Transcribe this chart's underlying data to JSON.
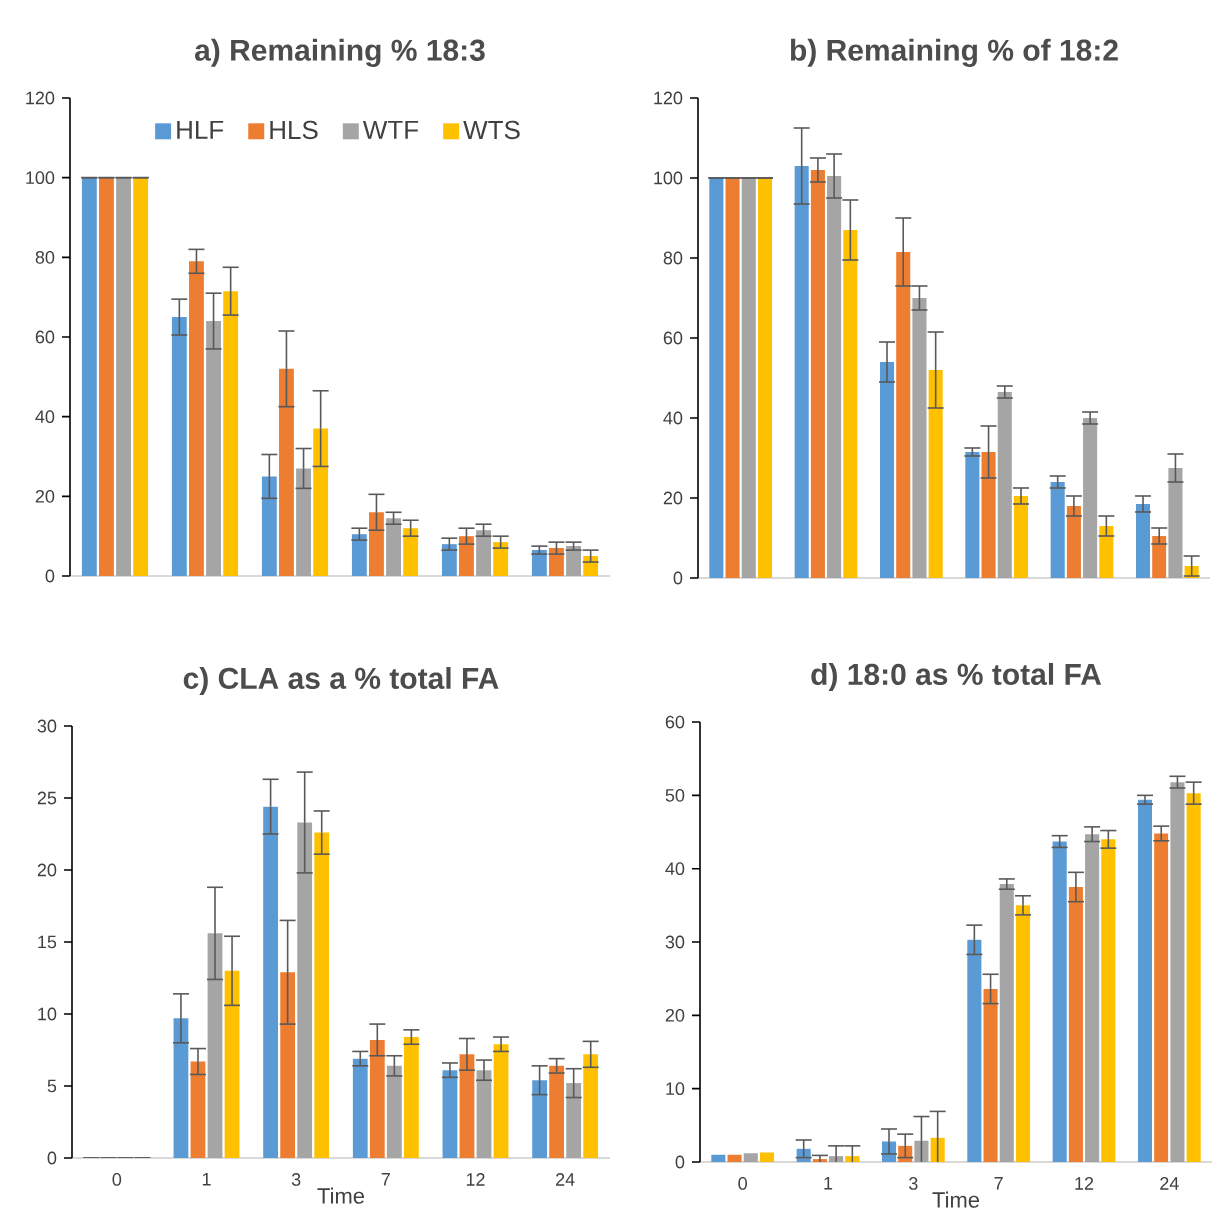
{
  "chart_data": [
    {
      "type": "bar",
      "title": "a) Remaining % 18:3",
      "categories": [
        null,
        null,
        null,
        null,
        null,
        null
      ],
      "tick_labels": "y",
      "legend": "top",
      "ylim": [
        0,
        120
      ],
      "yticks": [
        0,
        20,
        40,
        60,
        80,
        100,
        120
      ],
      "series": [
        {
          "name": "HLF",
          "color": "#5b9bd5",
          "values": [
            100,
            65,
            25,
            10.5,
            8,
            6.5
          ],
          "errors": [
            0,
            4.5,
            5.5,
            1.5,
            1.5,
            1
          ]
        },
        {
          "name": "HLS",
          "color": "#ed7d31",
          "values": [
            100,
            79,
            52,
            16,
            10,
            7
          ],
          "errors": [
            0,
            3,
            9.5,
            4.5,
            2,
            1.5
          ]
        },
        {
          "name": "WTF",
          "color": "#a5a5a5",
          "values": [
            100,
            64,
            27,
            14.5,
            11.5,
            7.5
          ],
          "errors": [
            0,
            7,
            5,
            1.5,
            1.5,
            1
          ]
        },
        {
          "name": "WTS",
          "color": "#ffc000",
          "values": [
            100,
            71.5,
            37,
            12,
            8.5,
            5
          ],
          "errors": [
            0,
            6,
            9.5,
            2,
            1.5,
            1.5
          ]
        }
      ]
    },
    {
      "type": "bar",
      "title": "b) Remaining % of 18:2",
      "categories": [
        null,
        null,
        null,
        null,
        null,
        null
      ],
      "tick_labels": "y",
      "ylim": [
        0,
        120
      ],
      "yticks": [
        0,
        20,
        40,
        60,
        80,
        100,
        120
      ],
      "series": [
        {
          "color": "#5b9bd5",
          "values": [
            100,
            103,
            54,
            31.5,
            24,
            18.5
          ],
          "errors": [
            0,
            9.5,
            5,
            1,
            1.5,
            2
          ]
        },
        {
          "color": "#ed7d31",
          "values": [
            100,
            102,
            81.5,
            31.5,
            18,
            10.5
          ],
          "errors": [
            0,
            3,
            8.5,
            6.5,
            2.5,
            2
          ]
        },
        {
          "color": "#a5a5a5",
          "values": [
            100,
            100.5,
            70,
            46.5,
            40,
            27.5
          ],
          "errors": [
            0,
            5.5,
            3,
            1.5,
            1.5,
            3.5
          ]
        },
        {
          "color": "#ffc000",
          "values": [
            100,
            87,
            52,
            20.5,
            13,
            3
          ],
          "errors": [
            0,
            7.5,
            9.5,
            2,
            2.5,
            2.5
          ]
        }
      ]
    },
    {
      "type": "bar",
      "title": "c) CLA as a % total FA",
      "xlabel": "Time",
      "categories": [
        "0",
        "1",
        "3",
        "7",
        "12",
        "24"
      ],
      "ylim": [
        0,
        30
      ],
      "yticks": [
        0,
        5,
        10,
        15,
        20,
        25,
        30
      ],
      "series": [
        {
          "color": "#5b9bd5",
          "values": [
            0,
            9.7,
            24.4,
            6.9,
            6.1,
            5.4
          ],
          "errors": [
            0,
            1.7,
            1.9,
            0.5,
            0.5,
            1
          ]
        },
        {
          "color": "#ed7d31",
          "values": [
            0,
            6.7,
            12.9,
            8.2,
            7.2,
            6.4
          ],
          "errors": [
            0,
            0.9,
            3.6,
            1.1,
            1.1,
            0.5
          ]
        },
        {
          "color": "#a5a5a5",
          "values": [
            0,
            15.6,
            23.3,
            6.4,
            6.1,
            5.2
          ],
          "errors": [
            0,
            3.2,
            3.5,
            0.7,
            0.7,
            1
          ]
        },
        {
          "color": "#ffc000",
          "values": [
            0,
            13,
            22.6,
            8.4,
            7.9,
            7.2
          ],
          "errors": [
            0,
            2.4,
            1.5,
            0.5,
            0.5,
            0.9
          ]
        }
      ]
    },
    {
      "type": "bar",
      "title": "d) 18:0 as % total FA",
      "xlabel": "Time",
      "categories": [
        "0",
        "1",
        "3",
        "7",
        "12",
        "24"
      ],
      "ylim": [
        0,
        60
      ],
      "yticks": [
        0,
        10,
        20,
        30,
        40,
        50,
        60
      ],
      "series": [
        {
          "color": "#5b9bd5",
          "values": [
            1,
            1.8,
            2.8,
            30.3,
            43.7,
            49.4
          ],
          "errors": [
            null,
            1.2,
            1.7,
            2,
            0.8,
            0.6
          ]
        },
        {
          "color": "#ed7d31",
          "values": [
            1,
            0.4,
            2.2,
            23.6,
            37.5,
            44.8
          ],
          "errors": [
            null,
            0.5,
            1.6,
            2,
            2,
            1
          ]
        },
        {
          "color": "#a5a5a5",
          "values": [
            1.2,
            0.8,
            2.9,
            37.9,
            44.7,
            51.8
          ],
          "errors": [
            null,
            1.4,
            3.3,
            0.7,
            1,
            0.8
          ]
        },
        {
          "color": "#ffc000",
          "values": [
            1.3,
            0.8,
            3.3,
            35,
            44,
            50.3
          ],
          "errors": [
            null,
            1.4,
            3.6,
            1.3,
            1.2,
            1.5
          ]
        }
      ]
    }
  ]
}
